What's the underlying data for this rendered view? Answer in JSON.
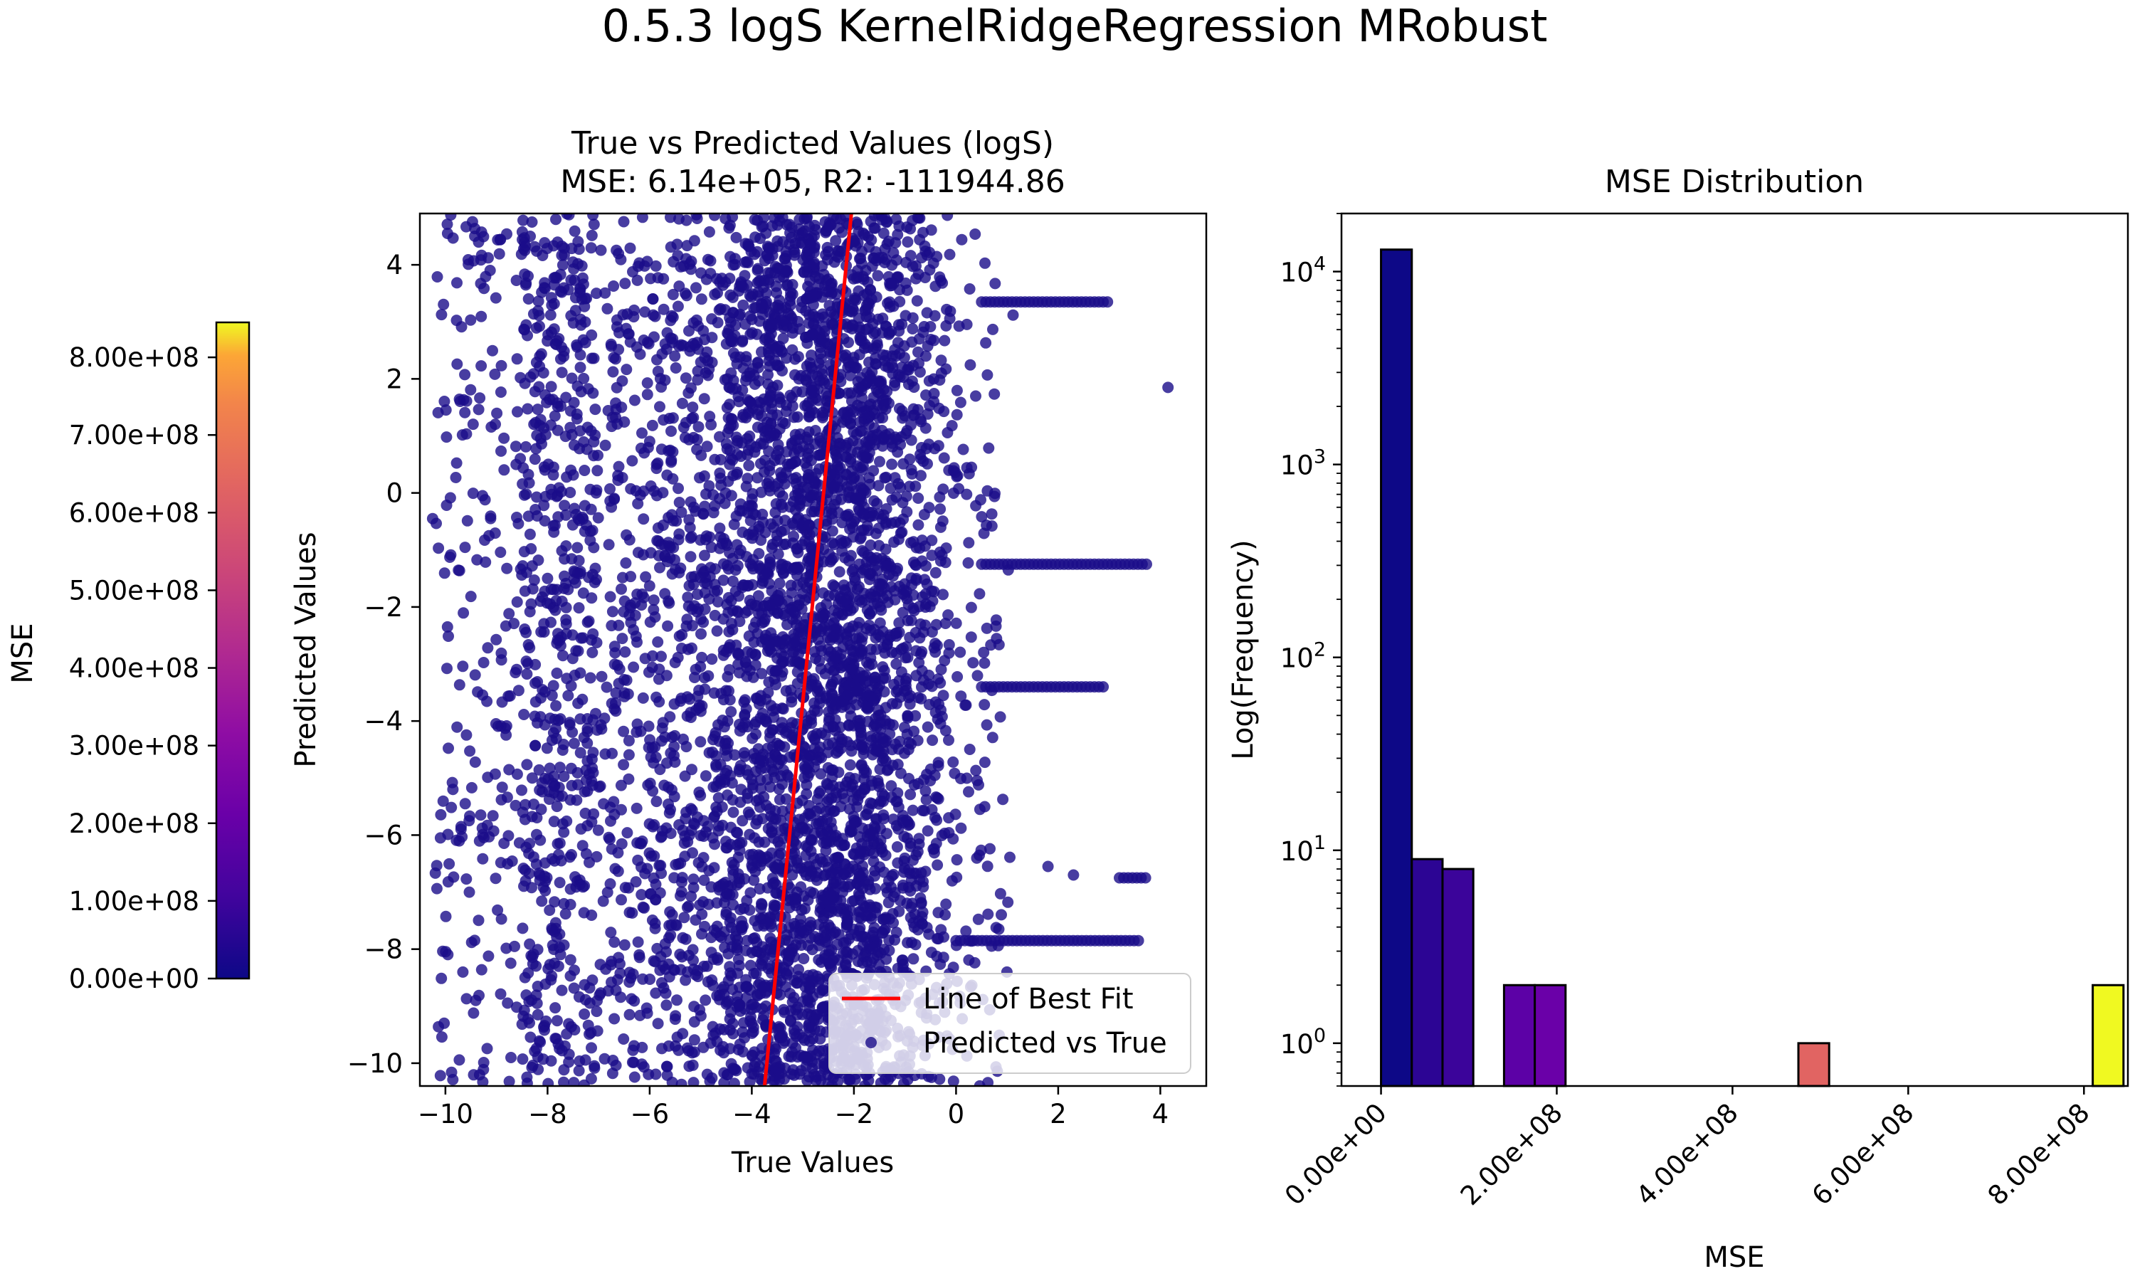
{
  "figure": {
    "suptitle": "0.5.3 logS KernelRidgeRegression MRobust"
  },
  "colorbar": {
    "label": "MSE",
    "ticks": [
      "0.00e+00",
      "1.00e+08",
      "2.00e+08",
      "3.00e+08",
      "4.00e+08",
      "5.00e+08",
      "6.00e+08",
      "7.00e+08",
      "8.00e+08"
    ],
    "tick_values": [
      0,
      100000000,
      200000000,
      300000000,
      400000000,
      500000000,
      600000000,
      700000000,
      800000000
    ],
    "range": [
      0,
      845000000
    ],
    "colormap": "plasma"
  },
  "chart_data": [
    {
      "type": "scatter",
      "title_line1": "True vs Predicted Values (logS)",
      "title_line2": "MSE: 6.14e+05, R2: -111944.86",
      "xlabel": "True Values",
      "ylabel": "Predicted Values",
      "xlim": [
        -10.5,
        4.9
      ],
      "ylim": [
        -10.4,
        4.9
      ],
      "xticks": [
        -10,
        -8,
        -6,
        -4,
        -2,
        0,
        2,
        4
      ],
      "xtick_labels": [
        "−10",
        "−8",
        "−6",
        "−4",
        "−2",
        "0",
        "2",
        "4"
      ],
      "yticks": [
        -10,
        -8,
        -6,
        -4,
        -2,
        0,
        2,
        4
      ],
      "ytick_labels": [
        "−10",
        "−8",
        "−6",
        "−4",
        "−2",
        "0",
        "2",
        "4"
      ],
      "point_color": "#1a0c8a",
      "approx_point_count": 12000,
      "series": [
        {
          "name": "Predicted vs True",
          "marker": "circle",
          "color": "#1a0c8a"
        },
        {
          "name": "Line of Best Fit",
          "marker": "line",
          "color": "#ff0000"
        }
      ],
      "best_fit_line": {
        "x1": -3.75,
        "y1": -10.4,
        "x2": -2.05,
        "y2": 4.9
      },
      "point_clusters": [
        {
          "center_x": -2.4,
          "spread_x": 1.9,
          "y_min": -10.4,
          "y_max": 4.9
        },
        {
          "center_x": -6.0,
          "spread_x": 2.0,
          "y_min": -10.4,
          "y_max": 4.9
        }
      ],
      "horizontal_streaks": [
        {
          "y": 3.35,
          "x_from": 0.5,
          "x_to": 3.0
        },
        {
          "y": -1.25,
          "x_from": 0.5,
          "x_to": 3.8
        },
        {
          "y": -3.4,
          "x_from": 0.5,
          "x_to": 2.9
        },
        {
          "y": -6.75,
          "x_from": 3.2,
          "x_to": 3.75
        },
        {
          "y": -7.85,
          "x_from": 0.0,
          "x_to": 3.6
        }
      ],
      "outliers": [
        {
          "x": 4.15,
          "y": 1.85
        },
        {
          "x": 1.8,
          "y": -6.55
        },
        {
          "x": 2.3,
          "y": -6.7
        },
        {
          "x": -9.35,
          "y": 4.4
        },
        {
          "x": -10.25,
          "y": -0.45
        }
      ],
      "legend_position": "lower right"
    },
    {
      "type": "bar",
      "title": "MSE Distribution",
      "xlabel": "MSE",
      "ylabel": "Log(Frequency)",
      "yscale": "log",
      "ylim": [
        0.6,
        20000
      ],
      "xlim": [
        -45000000,
        850000000
      ],
      "xticks": [
        0,
        200000000,
        400000000,
        600000000,
        800000000
      ],
      "xtick_labels": [
        "0.00e+00",
        "2.00e+08",
        "4.00e+08",
        "6.00e+08",
        "8.00e+08"
      ],
      "yticks": [
        1,
        10,
        100,
        1000,
        10000
      ],
      "bin_width": 35000000,
      "bins": [
        {
          "x_start": 0,
          "count": 13000,
          "color": "#0d0887"
        },
        {
          "x_start": 35000000,
          "count": 9,
          "color": "#2c0594"
        },
        {
          "x_start": 70000000,
          "count": 8,
          "color": "#3b049a"
        },
        {
          "x_start": 140000000,
          "count": 2,
          "color": "#5c01a6"
        },
        {
          "x_start": 175000000,
          "count": 2,
          "color": "#6a00a8"
        },
        {
          "x_start": 475000000,
          "count": 1,
          "color": "#e16462"
        },
        {
          "x_start": 810000000,
          "count": 2,
          "color": "#f0f921"
        }
      ]
    }
  ]
}
